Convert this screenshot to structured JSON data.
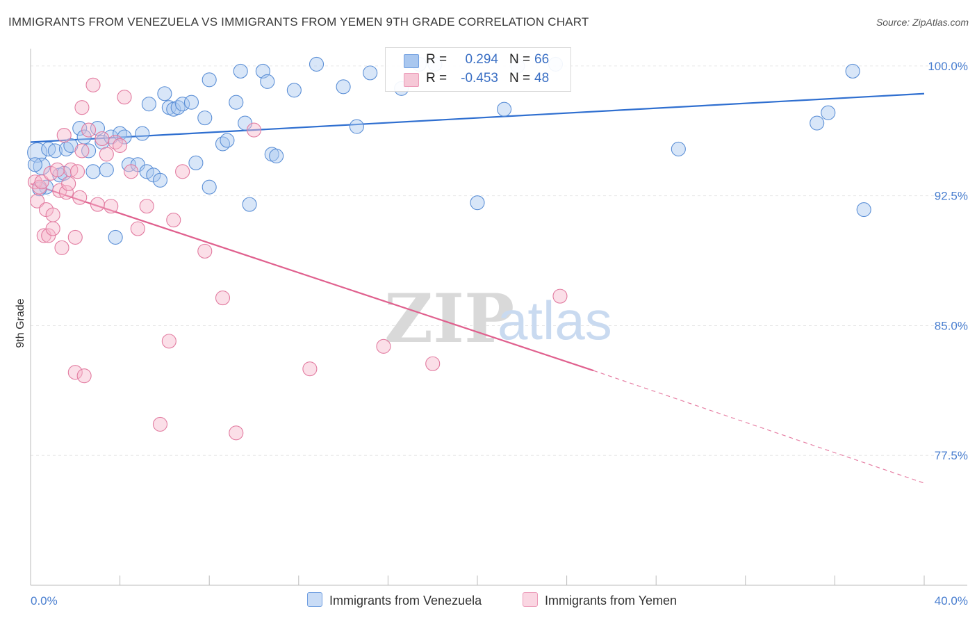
{
  "header": {
    "title": "IMMIGRANTS FROM VENEZUELA VS IMMIGRANTS FROM YEMEN 9TH GRADE CORRELATION CHART",
    "source": "Source: ZipAtlas.com"
  },
  "watermark": {
    "zip": "ZIP",
    "atlas": "atlas"
  },
  "legend": {
    "rows": [
      {
        "r_label": "R =",
        "r_value": "0.294",
        "n_label": "N =",
        "n_value": "66",
        "color": "#a9c7ef"
      },
      {
        "r_label": "R =",
        "r_value": "-0.453",
        "n_label": "N =",
        "n_value": "48",
        "color": "#f6b8cc"
      }
    ]
  },
  "bottom_legend": {
    "items": [
      {
        "label": "Immigrants from Venezuela",
        "color": "#a9c7ef"
      },
      {
        "label": "Immigrants from Yemen",
        "color": "#f6b8cc"
      }
    ]
  },
  "chart_data": {
    "type": "scatter",
    "title": "IMMIGRANTS FROM VENEZUELA VS IMMIGRANTS FROM YEMEN 9TH GRADE CORRELATION CHART",
    "xlabel": "",
    "ylabel": "9th Grade",
    "xlim": [
      0,
      40
    ],
    "ylim": [
      70.0,
      101.0
    ],
    "x_tick_labels": [
      "0.0%",
      "40.0%"
    ],
    "y_ticks": [
      77.5,
      85.0,
      92.5,
      100.0
    ],
    "y_tick_labels": [
      "77.5%",
      "85.0%",
      "92.5%",
      "100.0%"
    ],
    "grid": true,
    "legend_position": "top-center",
    "series": [
      {
        "name": "Immigrants from Venezuela",
        "color": "#5b8fd6",
        "fill": "#a9c7ef",
        "trend": {
          "x": [
            0,
            40
          ],
          "y": [
            95.6,
            98.4
          ],
          "color": "#2f6fd0"
        },
        "points": [
          [
            0.3,
            95.0
          ],
          [
            0.5,
            94.2
          ],
          [
            0.7,
            93.0
          ],
          [
            0.8,
            95.2
          ],
          [
            1.1,
            95.1
          ],
          [
            1.3,
            93.7
          ],
          [
            1.5,
            93.8
          ],
          [
            1.6,
            95.2
          ],
          [
            1.8,
            95.4
          ],
          [
            2.2,
            96.4
          ],
          [
            2.4,
            95.9
          ],
          [
            2.6,
            95.1
          ],
          [
            2.8,
            93.9
          ],
          [
            3.0,
            96.4
          ],
          [
            3.2,
            95.6
          ],
          [
            3.4,
            94.0
          ],
          [
            3.6,
            95.9
          ],
          [
            3.8,
            90.1
          ],
          [
            4.0,
            96.1
          ],
          [
            4.2,
            95.9
          ],
          [
            4.4,
            94.3
          ],
          [
            4.8,
            94.3
          ],
          [
            5.0,
            96.1
          ],
          [
            5.2,
            93.9
          ],
          [
            5.3,
            97.8
          ],
          [
            5.5,
            93.7
          ],
          [
            5.8,
            93.4
          ],
          [
            6.0,
            98.4
          ],
          [
            6.2,
            97.6
          ],
          [
            6.4,
            97.5
          ],
          [
            6.6,
            97.6
          ],
          [
            6.8,
            97.8
          ],
          [
            7.2,
            97.9
          ],
          [
            7.4,
            94.4
          ],
          [
            7.8,
            97.0
          ],
          [
            8.0,
            93.0
          ],
          [
            8.0,
            99.2
          ],
          [
            8.6,
            95.5
          ],
          [
            8.8,
            95.7
          ],
          [
            9.2,
            97.9
          ],
          [
            9.4,
            99.7
          ],
          [
            9.6,
            96.7
          ],
          [
            9.8,
            92.0
          ],
          [
            10.4,
            99.7
          ],
          [
            10.6,
            99.1
          ],
          [
            10.8,
            94.9
          ],
          [
            11.0,
            94.8
          ],
          [
            11.8,
            98.6
          ],
          [
            12.8,
            100.1
          ],
          [
            14.0,
            98.8
          ],
          [
            14.6,
            96.5
          ],
          [
            15.2,
            99.6
          ],
          [
            16.6,
            98.7
          ],
          [
            17.4,
            100.1
          ],
          [
            18.1,
            100.1
          ],
          [
            20.0,
            92.1
          ],
          [
            21.2,
            97.5
          ],
          [
            21.8,
            100.0
          ],
          [
            23.5,
            100.1
          ],
          [
            29.0,
            95.2
          ],
          [
            35.2,
            96.7
          ],
          [
            35.7,
            97.3
          ],
          [
            37.3,
            91.7
          ],
          [
            36.8,
            99.7
          ],
          [
            0.2,
            94.3
          ],
          [
            0.4,
            92.9
          ]
        ],
        "sizes": [
          14,
          12,
          10,
          10,
          10,
          10,
          10,
          10,
          10,
          10,
          10,
          10,
          10,
          10,
          10,
          10,
          10,
          10,
          10,
          10,
          10,
          10,
          10,
          10,
          10,
          10,
          10,
          10,
          10,
          10,
          10,
          10,
          10,
          10,
          10,
          10,
          10,
          10,
          10,
          10,
          10,
          10,
          10,
          10,
          10,
          10,
          10,
          10,
          10,
          10,
          10,
          10,
          10,
          10,
          10,
          10,
          10,
          10,
          10,
          10,
          10,
          10,
          10,
          10,
          10,
          10
        ]
      },
      {
        "name": "Immigrants from Yemen",
        "color": "#e27ba0",
        "fill": "#f6b8cc",
        "trend": {
          "x": [
            0,
            25.2
          ],
          "y": [
            93.2,
            82.4
          ],
          "color": "#e0608e"
        },
        "trend_extension": {
          "x": [
            25.2,
            40
          ],
          "y": [
            82.4,
            75.9
          ]
        },
        "points": [
          [
            0.2,
            93.3
          ],
          [
            0.3,
            92.2
          ],
          [
            0.4,
            93.0
          ],
          [
            0.5,
            93.3
          ],
          [
            0.6,
            90.2
          ],
          [
            0.7,
            91.7
          ],
          [
            0.8,
            90.2
          ],
          [
            0.9,
            93.8
          ],
          [
            1.0,
            90.6
          ],
          [
            1.0,
            91.4
          ],
          [
            1.2,
            94.0
          ],
          [
            1.3,
            92.8
          ],
          [
            1.4,
            89.5
          ],
          [
            1.5,
            96.0
          ],
          [
            1.6,
            92.7
          ],
          [
            1.7,
            93.2
          ],
          [
            1.8,
            94.0
          ],
          [
            2.0,
            90.1
          ],
          [
            2.0,
            82.3
          ],
          [
            2.1,
            93.9
          ],
          [
            2.2,
            92.4
          ],
          [
            2.3,
            95.1
          ],
          [
            2.3,
            97.6
          ],
          [
            2.4,
            82.1
          ],
          [
            2.6,
            96.3
          ],
          [
            2.8,
            98.9
          ],
          [
            3.0,
            92.0
          ],
          [
            3.2,
            95.8
          ],
          [
            3.4,
            94.9
          ],
          [
            3.6,
            91.9
          ],
          [
            3.8,
            95.6
          ],
          [
            4.0,
            95.4
          ],
          [
            4.2,
            98.2
          ],
          [
            4.5,
            93.9
          ],
          [
            4.8,
            90.6
          ],
          [
            5.2,
            91.9
          ],
          [
            5.8,
            79.3
          ],
          [
            6.2,
            84.1
          ],
          [
            6.4,
            91.1
          ],
          [
            6.8,
            93.9
          ],
          [
            7.8,
            89.3
          ],
          [
            8.6,
            86.6
          ],
          [
            9.2,
            78.8
          ],
          [
            10.0,
            96.3
          ],
          [
            12.5,
            82.5
          ],
          [
            15.8,
            83.8
          ],
          [
            18.0,
            82.8
          ],
          [
            23.7,
            86.7
          ]
        ],
        "sizes": [
          10,
          10,
          10,
          10,
          10,
          10,
          10,
          10,
          10,
          10,
          10,
          10,
          10,
          10,
          10,
          10,
          10,
          10,
          10,
          10,
          10,
          10,
          10,
          10,
          10,
          10,
          10,
          10,
          10,
          10,
          10,
          10,
          10,
          10,
          10,
          10,
          10,
          10,
          10,
          10,
          10,
          10,
          10,
          10,
          10,
          10,
          10,
          10
        ]
      }
    ]
  }
}
